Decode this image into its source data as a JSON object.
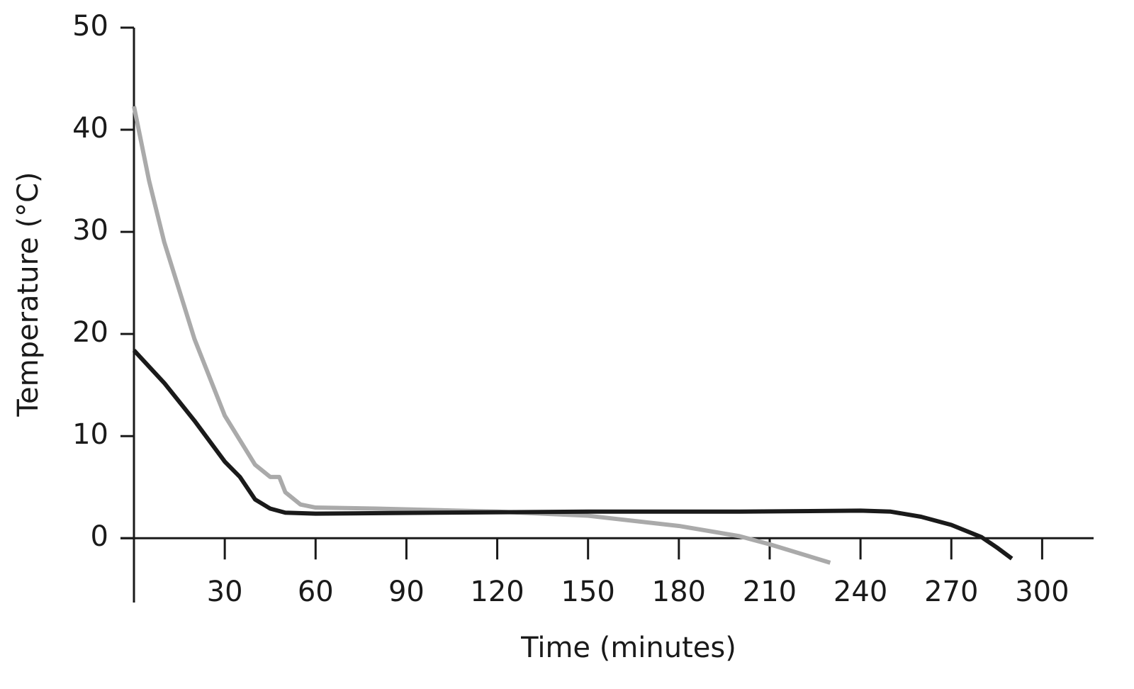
{
  "chart_data": {
    "type": "line",
    "x_label": "Time (minutes)",
    "y_label": "Temperature (°C)",
    "xlim": [
      0,
      317
    ],
    "ylim": [
      -6.3,
      50
    ],
    "xticks": [
      30,
      60,
      90,
      120,
      150,
      180,
      210,
      240,
      270,
      300
    ],
    "yticks": [
      0,
      10,
      20,
      30,
      40,
      50
    ],
    "series": [
      {
        "color": "#1a1a1a",
        "x": [
          0,
          10,
          20,
          30,
          35,
          40,
          45,
          50,
          60,
          100,
          150,
          200,
          240,
          250,
          260,
          270,
          280,
          285,
          290
        ],
        "values": [
          18.4,
          15.2,
          11.5,
          7.5,
          6,
          3.8,
          2.9,
          2.5,
          2.4,
          2.5,
          2.6,
          2.6,
          2.7,
          2.6,
          2.1,
          1.3,
          0.1,
          -0.9,
          -2
        ]
      },
      {
        "color": "#aaaaaa",
        "x": [
          0,
          5,
          10,
          20,
          30,
          40,
          45,
          48,
          50,
          55,
          60,
          80,
          120,
          150,
          180,
          200,
          210,
          230
        ],
        "values": [
          42.3,
          35,
          29,
          19.5,
          12,
          7.2,
          6,
          6,
          4.5,
          3.3,
          3,
          2.9,
          2.6,
          2.2,
          1.2,
          0.2,
          -0.6,
          -2.4
        ]
      }
    ]
  }
}
